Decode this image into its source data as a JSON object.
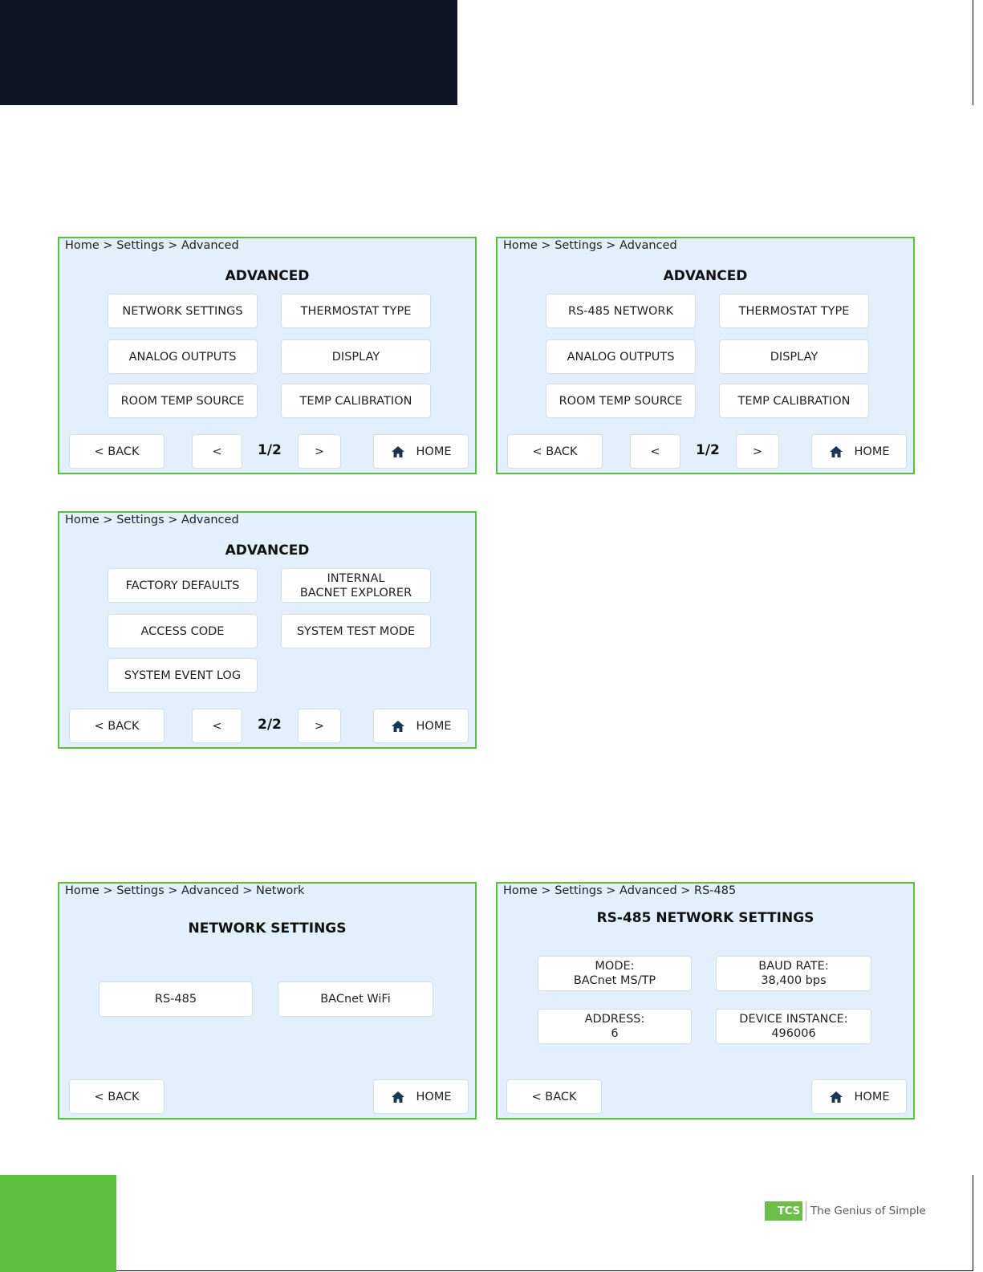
{
  "colors": {
    "header": "#0f1522",
    "accent_green": "#5bbf3f",
    "panel_bg": "#e3effd",
    "panel_border": "#57c23e"
  },
  "panels": [
    {
      "breadcrumb": "Home > Settings > Advanced",
      "title": "ADVANCED",
      "buttons": [
        "NETWORK SETTINGS",
        "THERMOSTAT TYPE",
        "ANALOG OUTPUTS",
        "DISPLAY",
        "ROOM TEMP SOURCE",
        "TEMP CALIBRATION"
      ],
      "back": "< BACK",
      "prev": "<",
      "page": "1/2",
      "next": ">",
      "home": "HOME"
    },
    {
      "breadcrumb": "Home > Settings > Advanced",
      "title": "ADVANCED",
      "buttons": [
        "RS-485 NETWORK",
        "THERMOSTAT TYPE",
        "ANALOG OUTPUTS",
        "DISPLAY",
        "ROOM TEMP SOURCE",
        "TEMP CALIBRATION"
      ],
      "back": "< BACK",
      "prev": "<",
      "page": "1/2",
      "next": ">",
      "home": "HOME"
    },
    {
      "breadcrumb": "Home > Settings > Advanced",
      "title": "ADVANCED",
      "buttons": [
        "FACTORY DEFAULTS",
        "INTERNAL\nBACNET EXPLORER",
        "ACCESS CODE",
        "SYSTEM TEST MODE",
        "SYSTEM EVENT LOG"
      ],
      "back": "< BACK",
      "prev": "<",
      "page": "2/2",
      "next": ">",
      "home": "HOME"
    },
    {
      "breadcrumb": "Home > Settings > Advanced > Network",
      "title": "NETWORK SETTINGS",
      "buttons": [
        "RS-485",
        "BACnet WiFi"
      ],
      "back": "< BACK",
      "home": "HOME"
    },
    {
      "breadcrumb": "Home > Settings > Advanced > RS-485",
      "title": "RS-485 NETWORK SETTINGS",
      "buttons": [
        "MODE:\nBACnet MS/TP",
        "BAUD RATE:\n38,400 bps",
        "ADDRESS:\n6",
        "DEVICE INSTANCE:\n496006"
      ],
      "back": "< BACK",
      "home": "HOME"
    }
  ],
  "footer": {
    "logo_mark": "TCS",
    "tagline": "The Genius of Simple"
  }
}
